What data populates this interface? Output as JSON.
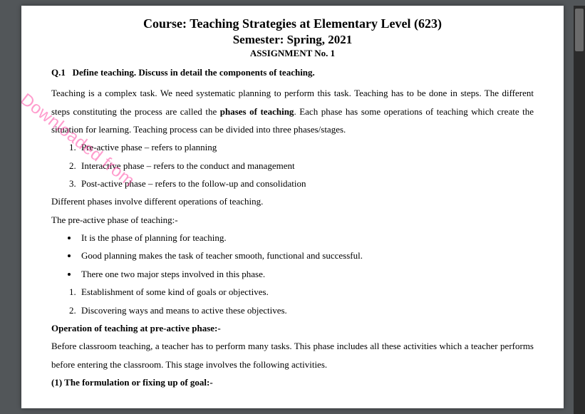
{
  "header": {
    "course_title": "Course: Teaching Strategies at Elementary Level (623)",
    "semester": "Semester: Spring, 2021",
    "assignment": "ASSIGNMENT No. 1"
  },
  "question": {
    "number": "Q.1",
    "text": "Define teaching. Discuss in detail the components of teaching."
  },
  "body": {
    "intro_before_bold": "Teaching is a complex task. We need systematic planning to perform this task. Teaching has to be done in steps. The different steps constituting the process are called the ",
    "intro_bold": "phases of teaching",
    "intro_after_bold": ". Each phase has some operations of teaching which create the situation for learning. Teaching process can be divided into three phases/stages.",
    "phases": [
      "Pre-active phase – refers to planning",
      "Interactive phase – refers to the conduct and management",
      "Post-active phase – refers to the follow-up and consolidation"
    ],
    "after_phases_1": "Different phases involve different operations of teaching.",
    "after_phases_2": "The pre-active phase of teaching:-",
    "preactive_bullets": [
      "It is the phase of planning for teaching.",
      "Good planning makes the task of teacher smooth, functional and successful.",
      "There one two major steps involved in this phase."
    ],
    "preactive_steps": [
      "Establishment of some kind of goals or objectives.",
      "Discovering ways and means to active these objectives."
    ],
    "operation_heading": "Operation of teaching at pre-active phase:-",
    "operation_para": "Before classroom teaching, a teacher has to perform many tasks. This phase includes all these activities which a teacher performs before entering the classroom. This stage involves the following activities.",
    "sub1": "(1) The formulation or fixing up of goal:-"
  },
  "watermark": {
    "text": "Downloaded from",
    "color": "#ff3399"
  },
  "colors": {
    "page_bg": "#ffffff",
    "viewer_bg": "#525659",
    "text": "#000000"
  }
}
